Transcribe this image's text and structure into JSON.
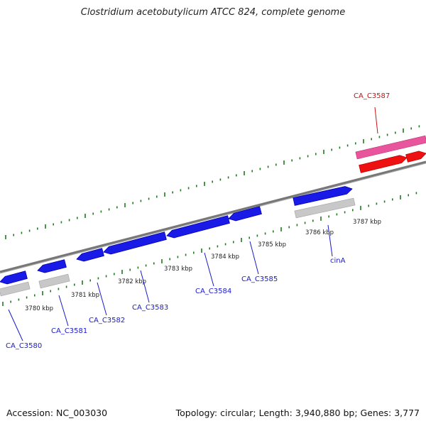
{
  "title": "Clostridium acetobutylicum ATCC 824, complete genome",
  "footer": {
    "accession": "Accession: NC_003030",
    "stats": "Topology: circular; Length: 3,940,880 bp; Genes: 3,777"
  },
  "colors": {
    "backbone": "#777777",
    "gene": "#1a1ae6",
    "gene_rna": "#c8c8c8",
    "gene_label": "#1a1acc",
    "highlight_gene": "#ee1111",
    "highlight_track": "#e8559c",
    "highlight_label": "#cc1111",
    "ticks": "#1f7a1f"
  },
  "kbp_ticks": [
    "3780 kbp",
    "3781 kbp",
    "3782 kbp",
    "3783 kbp",
    "3784 kbp",
    "3785 kbp",
    "3786 kbp",
    "3787 kbp"
  ],
  "gene_labels": [
    {
      "text": "CA_C3580",
      "type": "normal"
    },
    {
      "text": "CA_C3581",
      "type": "normal"
    },
    {
      "text": "CA_C3582",
      "type": "normal"
    },
    {
      "text": "CA_C3583",
      "type": "normal"
    },
    {
      "text": "CA_C3584",
      "type": "normal"
    },
    {
      "text": "CA_C3585",
      "type": "normal"
    },
    {
      "text": "cinA",
      "type": "normal"
    },
    {
      "text": "CA_C3587",
      "type": "highlight"
    }
  ]
}
